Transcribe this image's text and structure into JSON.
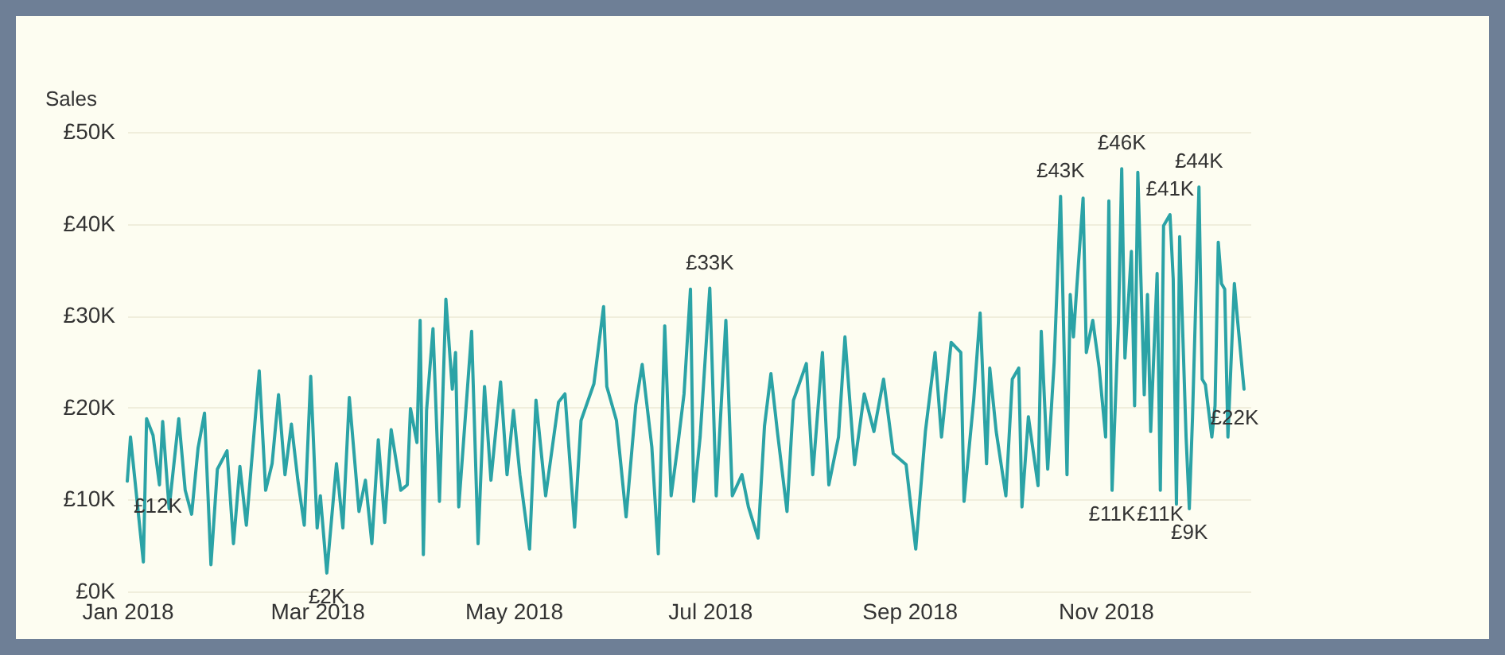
{
  "chart_data": {
    "type": "line",
    "ylabel": "Sales",
    "color": "#2ba3a6",
    "grid": "y",
    "marker": "none",
    "line_style": "solid",
    "xlim": [
      "2018-01-01",
      "2018-12-16"
    ],
    "ylim": [
      0,
      50
    ],
    "xticks": [
      {
        "value": "2018-01",
        "label": "Jan 2018"
      },
      {
        "value": "2018-03",
        "label": "Mar 2018"
      },
      {
        "value": "2018-05",
        "label": "May 2018"
      },
      {
        "value": "2018-07",
        "label": "Jul 2018"
      },
      {
        "value": "2018-09",
        "label": "Sep 2018"
      },
      {
        "value": "2018-11",
        "label": "Nov 2018"
      }
    ],
    "yticks": [
      {
        "value": 0,
        "label": "£0K"
      },
      {
        "value": 10,
        "label": "£10K"
      },
      {
        "value": 20,
        "label": "£20K"
      },
      {
        "value": 30,
        "label": "£30K"
      },
      {
        "value": 40,
        "label": "£40K"
      },
      {
        "value": 50,
        "label": "£50K"
      }
    ],
    "x": [
      "2018-01-01",
      "2018-01-02",
      "2018-01-06",
      "2018-01-07",
      "2018-01-09",
      "2018-01-11",
      "2018-01-12",
      "2018-01-14",
      "2018-01-17",
      "2018-01-19",
      "2018-01-21",
      "2018-01-23",
      "2018-01-25",
      "2018-01-27",
      "2018-01-29",
      "2018-02-01",
      "2018-02-03",
      "2018-02-05",
      "2018-02-07",
      "2018-02-11",
      "2018-02-13",
      "2018-02-15",
      "2018-02-17",
      "2018-02-19",
      "2018-02-21",
      "2018-02-23",
      "2018-02-25",
      "2018-02-27",
      "2018-03-01",
      "2018-03-02",
      "2018-03-04",
      "2018-03-07",
      "2018-03-09",
      "2018-03-11",
      "2018-03-14",
      "2018-03-16",
      "2018-03-18",
      "2018-03-20",
      "2018-03-22",
      "2018-03-24",
      "2018-03-27",
      "2018-03-29",
      "2018-03-30",
      "2018-04-01",
      "2018-04-02",
      "2018-04-03",
      "2018-04-04",
      "2018-04-06",
      "2018-04-08",
      "2018-04-10",
      "2018-04-12",
      "2018-04-13",
      "2018-04-14",
      "2018-04-18",
      "2018-04-20",
      "2018-04-22",
      "2018-04-24",
      "2018-04-27",
      "2018-04-29",
      "2018-05-01",
      "2018-05-03",
      "2018-05-06",
      "2018-05-08",
      "2018-05-11",
      "2018-05-15",
      "2018-05-17",
      "2018-05-20",
      "2018-05-22",
      "2018-05-26",
      "2018-05-29",
      "2018-05-30",
      "2018-06-02",
      "2018-06-05",
      "2018-06-08",
      "2018-06-10",
      "2018-06-13",
      "2018-06-15",
      "2018-06-17",
      "2018-06-19",
      "2018-06-21",
      "2018-06-23",
      "2018-06-25",
      "2018-06-26",
      "2018-06-28",
      "2018-07-01",
      "2018-07-03",
      "2018-07-06",
      "2018-07-08",
      "2018-07-11",
      "2018-07-13",
      "2018-07-16",
      "2018-07-18",
      "2018-07-20",
      "2018-07-22",
      "2018-07-25",
      "2018-07-27",
      "2018-07-31",
      "2018-08-02",
      "2018-08-05",
      "2018-08-07",
      "2018-08-10",
      "2018-08-12",
      "2018-08-15",
      "2018-08-18",
      "2018-08-21",
      "2018-08-24",
      "2018-08-27",
      "2018-08-31",
      "2018-09-03",
      "2018-09-06",
      "2018-09-09",
      "2018-09-11",
      "2018-09-14",
      "2018-09-17",
      "2018-09-18",
      "2018-09-21",
      "2018-09-23",
      "2018-09-25",
      "2018-09-26",
      "2018-09-28",
      "2018-10-01",
      "2018-10-03",
      "2018-10-05",
      "2018-10-06",
      "2018-10-08",
      "2018-10-11",
      "2018-10-12",
      "2018-10-14",
      "2018-10-16",
      "2018-10-18",
      "2018-10-20",
      "2018-10-21",
      "2018-10-22",
      "2018-10-23",
      "2018-10-25",
      "2018-10-26",
      "2018-10-28",
      "2018-10-30",
      "2018-11-01",
      "2018-11-02",
      "2018-11-03",
      "2018-11-05",
      "2018-11-06",
      "2018-11-07",
      "2018-11-09",
      "2018-11-10",
      "2018-11-11",
      "2018-11-13",
      "2018-11-14",
      "2018-11-15",
      "2018-11-17",
      "2018-11-18",
      "2018-11-19",
      "2018-11-21",
      "2018-11-22",
      "2018-11-23",
      "2018-11-24",
      "2018-11-26",
      "2018-11-27",
      "2018-11-28",
      "2018-11-30",
      "2018-12-01",
      "2018-12-02",
      "2018-12-04",
      "2018-12-05",
      "2018-12-06",
      "2018-12-07",
      "2018-12-08",
      "2018-12-09",
      "2018-12-11",
      "2018-12-12",
      "2018-12-14"
    ],
    "values": [
      12,
      16.8,
      3.2,
      18.8,
      17,
      11.6,
      18.5,
      9,
      18.8,
      11,
      8.4,
      15.6,
      19.4,
      2.9,
      13.3,
      15.3,
      5.2,
      13.6,
      7.2,
      24,
      11,
      13.9,
      21.4,
      12.7,
      18.2,
      12.1,
      7.2,
      23.4,
      6.9,
      10.4,
      2,
      13.9,
      6.9,
      21.1,
      8.7,
      12.1,
      5.2,
      16.5,
      7.5,
      17.6,
      11,
      11.6,
      19.9,
      16.2,
      29.5,
      4,
      19.7,
      28.6,
      9.8,
      31.8,
      22,
      26,
      9.2,
      28.3,
      5.2,
      22.3,
      12.1,
      22.8,
      12.7,
      19.7,
      12.7,
      4.6,
      20.8,
      10.4,
      20.6,
      21.5,
      7,
      18.6,
      22.6,
      31,
      22.3,
      18.6,
      8.1,
      20.3,
      24.7,
      15.7,
      4.1,
      28.9,
      10.4,
      15.7,
      21.5,
      32.9,
      9.8,
      16.8,
      33,
      10.4,
      29.5,
      10.4,
      12.7,
      9.2,
      5.8,
      18,
      23.7,
      17.4,
      8.7,
      20.8,
      24.8,
      12.7,
      26,
      11.6,
      16.8,
      27.7,
      13.8,
      21.5,
      17.4,
      23.1,
      15,
      13.8,
      4.6,
      17.4,
      26,
      16.8,
      27.1,
      26,
      9.8,
      20.8,
      30.3,
      13.9,
      24.3,
      17.4,
      10.4,
      23.1,
      24.3,
      9.2,
      19,
      11.5,
      28.3,
      13.3,
      24.9,
      43,
      12.7,
      32.3,
      27.7,
      32.9,
      42.8,
      26,
      29.5,
      24.3,
      16.8,
      42.5,
      11,
      29.5,
      46,
      25.4,
      37,
      20.2,
      45.6,
      21.4,
      32.3,
      17.4,
      34.6,
      11,
      39.8,
      41,
      34,
      9.5,
      38.6,
      16.8,
      9,
      19,
      44,
      23.1,
      22.5,
      16.8,
      20.2,
      38,
      33.5,
      32.9,
      16.8,
      33.5,
      29.5,
      22
    ],
    "annotations": [
      {
        "text": "£12K",
        "x": "2018-01-01",
        "y": 12
      },
      {
        "text": "£2K",
        "x": "2018-03-04",
        "y": 2
      },
      {
        "text": "£33K",
        "x": "2018-07-01",
        "y": 33
      },
      {
        "text": "£43K",
        "x": "2018-10-18",
        "y": 43
      },
      {
        "text": "£46K",
        "x": "2018-11-06",
        "y": 46
      },
      {
        "text": "£11K",
        "x": "2018-11-03",
        "y": 11
      },
      {
        "text": "£11K",
        "x": "2018-11-18",
        "y": 11
      },
      {
        "text": "£41K",
        "x": "2018-11-21",
        "y": 41
      },
      {
        "text": "£9K",
        "x": "2018-11-27",
        "y": 9
      },
      {
        "text": "£44K",
        "x": "2018-11-30",
        "y": 44
      },
      {
        "text": "£22K",
        "x": "2018-12-14",
        "y": 22
      }
    ]
  }
}
